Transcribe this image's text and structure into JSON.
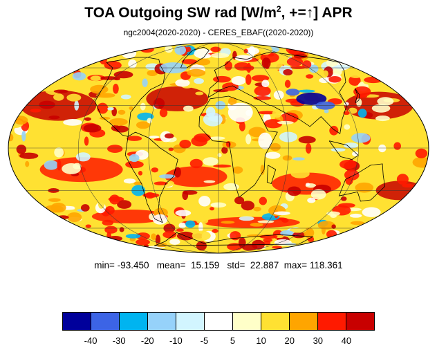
{
  "title": {
    "main": "TOA Outgoing SW rad [W/m",
    "sup": "2",
    "suffix": ", +=↑] APR"
  },
  "subtitle": "ngc2004(2020-2020) - CERES_EBAF((2020-2020))",
  "stats": {
    "min_label": "min=",
    "min": "-93.450",
    "mean_label": "mean=",
    "mean": "15.159",
    "std_label": "std=",
    "std": "22.887",
    "max_label": "max=",
    "max": "118.361"
  },
  "map": {
    "projection": "Mollweide",
    "central_longitude": 0,
    "field": "TOA outgoing SW radiation difference (model - obs)",
    "land_outline_color": "#000000"
  },
  "colorbar": {
    "colors": [
      "#00009b",
      "#3c64e6",
      "#00b4f0",
      "#96d2fa",
      "#d2f5ff",
      "#ffffff",
      "#ffffc8",
      "#ffe132",
      "#ffa500",
      "#ff1a00",
      "#c80000"
    ],
    "labels": [
      "-40",
      "-30",
      "-20",
      "-10",
      "-5",
      "5",
      "10",
      "20",
      "30",
      "40"
    ]
  }
}
